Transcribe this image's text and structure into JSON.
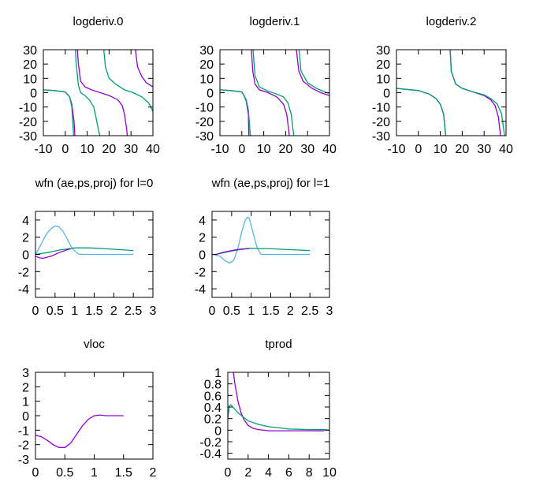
{
  "colors": {
    "purple": "#9400d3",
    "green": "#009e73",
    "blue": "#56b4e9"
  },
  "chart_data": [
    {
      "type": "line",
      "title": "logderiv.0",
      "xlim": [
        -10,
        40
      ],
      "ylim": [
        -30,
        30
      ],
      "xticks": [
        "-10",
        "0",
        "10",
        "20",
        "30",
        "40"
      ],
      "yticks": [
        "-30",
        "-20",
        "-10",
        "0",
        "10",
        "20",
        "30"
      ],
      "series": [
        {
          "color": "purple",
          "points": [
            [
              -10,
              2
            ],
            [
              -5,
              1.5
            ],
            [
              0,
              0.5
            ],
            [
              2,
              -3
            ],
            [
              3,
              -8
            ],
            [
              4,
              -20
            ],
            [
              4.4,
              -30
            ],
            null,
            [
              5.5,
              30
            ],
            [
              6,
              20
            ],
            [
              7,
              8
            ],
            [
              9,
              4
            ],
            [
              12,
              2
            ],
            [
              15,
              0.5
            ],
            [
              20,
              -2
            ],
            [
              24,
              -5
            ],
            [
              26,
              -9
            ],
            [
              27,
              -15
            ],
            [
              28,
              -25
            ],
            [
              28.3,
              -30
            ],
            null,
            [
              32,
              30
            ],
            [
              33,
              18
            ],
            [
              35,
              11
            ],
            [
              37,
              7
            ],
            [
              40,
              4
            ]
          ]
        },
        {
          "color": "green",
          "points": [
            [
              -10,
              2
            ],
            [
              -5,
              1.5
            ],
            [
              0,
              0.5
            ],
            [
              2,
              -3
            ],
            [
              3,
              -10
            ],
            [
              3.8,
              -30
            ],
            null,
            [
              4.6,
              30
            ],
            [
              5,
              20
            ],
            [
              6,
              5
            ],
            [
              7,
              0
            ],
            [
              9,
              -2
            ],
            [
              11,
              -5
            ],
            [
              13,
              -10
            ],
            [
              14,
              -17
            ],
            [
              15,
              -25
            ],
            [
              15.8,
              -30
            ],
            null,
            [
              17.6,
              30
            ],
            [
              18.3,
              18
            ],
            [
              20,
              10
            ],
            [
              23,
              6
            ],
            [
              27,
              2
            ],
            [
              31,
              0
            ],
            [
              35,
              -3
            ],
            [
              38,
              -7
            ],
            [
              40,
              -13
            ]
          ]
        }
      ]
    },
    {
      "type": "line",
      "title": "logderiv.1",
      "xlim": [
        -10,
        40
      ],
      "ylim": [
        -30,
        30
      ],
      "xticks": [
        "-10",
        "0",
        "10",
        "20",
        "30",
        "40"
      ],
      "yticks": [
        "-30",
        "-20",
        "-10",
        "0",
        "10",
        "20",
        "30"
      ],
      "series": [
        {
          "color": "purple",
          "points": [
            [
              -10,
              2
            ],
            [
              -5,
              1.5
            ],
            [
              0,
              0.5
            ],
            [
              1,
              -2
            ],
            [
              2,
              -6
            ],
            [
              3,
              -15
            ],
            [
              3.2,
              -30
            ],
            null,
            [
              4.4,
              30
            ],
            [
              5,
              15
            ],
            [
              6,
              6
            ],
            [
              8,
              2
            ],
            [
              12,
              0
            ],
            [
              16,
              -3
            ],
            [
              19,
              -8
            ],
            [
              20.5,
              -15
            ],
            [
              21.7,
              -30
            ],
            null,
            [
              24.9,
              30
            ],
            [
              26,
              15
            ],
            [
              28,
              8
            ],
            [
              32,
              3
            ],
            [
              36,
              0
            ],
            [
              40,
              -2
            ]
          ]
        },
        {
          "color": "green",
          "points": [
            [
              -10,
              2
            ],
            [
              -5,
              1.5
            ],
            [
              0,
              0.5
            ],
            [
              1,
              -2
            ],
            [
              2,
              -5
            ],
            [
              3,
              -12
            ],
            [
              3.9,
              -30
            ],
            null,
            [
              5.1,
              30
            ],
            [
              6,
              12
            ],
            [
              8,
              4
            ],
            [
              12,
              1
            ],
            [
              16,
              -1
            ],
            [
              19,
              -3
            ],
            [
              21,
              -7
            ],
            [
              22.5,
              -15
            ],
            [
              23.7,
              -30
            ],
            null,
            [
              26.1,
              30
            ],
            [
              27,
              15
            ],
            [
              30,
              7
            ],
            [
              34,
              3
            ],
            [
              38,
              0.5
            ],
            [
              40,
              -0.5
            ]
          ]
        }
      ]
    },
    {
      "type": "line",
      "title": "logderiv.2",
      "xlim": [
        -10,
        40
      ],
      "ylim": [
        -30,
        30
      ],
      "xticks": [
        "-10",
        "0",
        "10",
        "20",
        "30",
        "40"
      ],
      "yticks": [
        "-30",
        "-20",
        "-10",
        "0",
        "10",
        "20",
        "30"
      ],
      "series": [
        {
          "color": "purple",
          "points": [
            [
              -10,
              3
            ],
            [
              0,
              1.5
            ],
            [
              5,
              -1
            ],
            [
              8,
              -4
            ],
            [
              10,
              -8
            ],
            [
              11.5,
              -15
            ],
            [
              12.5,
              -30
            ],
            null,
            [
              14.5,
              30
            ],
            [
              15,
              15
            ],
            [
              17,
              6
            ],
            [
              20,
              3
            ],
            [
              25,
              0.5
            ],
            [
              30,
              -2
            ],
            [
              33,
              -5
            ],
            [
              35,
              -9
            ],
            [
              36.5,
              -17
            ],
            [
              37.5,
              -30
            ]
          ]
        },
        {
          "color": "green",
          "points": [
            [
              -10,
              3
            ],
            [
              0,
              1.5
            ],
            [
              5,
              -1
            ],
            [
              8,
              -4
            ],
            [
              10,
              -8
            ],
            [
              11.5,
              -15
            ],
            [
              12.5,
              -30
            ],
            null,
            [
              14.5,
              30
            ],
            [
              15,
              15
            ],
            [
              17,
              6
            ],
            [
              20,
              3
            ],
            [
              25,
              0.5
            ],
            [
              30,
              -1.5
            ],
            [
              33,
              -4
            ],
            [
              36,
              -8
            ],
            [
              38,
              -15
            ],
            [
              39.3,
              -30
            ]
          ]
        }
      ]
    },
    {
      "type": "line",
      "title": "wfn (ae,ps,proj) for l=0",
      "xlim": [
        0,
        3
      ],
      "ylim": [
        -5,
        5
      ],
      "xticks": [
        "0",
        "0.5",
        "1",
        "1.5",
        "2",
        "2.5",
        "3"
      ],
      "yticks": [
        "-4",
        "-2",
        "0",
        "2",
        "4"
      ],
      "series": [
        {
          "color": "blue",
          "points": [
            [
              0,
              0
            ],
            [
              0.1,
              0.8
            ],
            [
              0.2,
              1.7
            ],
            [
              0.3,
              2.5
            ],
            [
              0.4,
              3.0
            ],
            [
              0.5,
              3.3
            ],
            [
              0.6,
              3.2
            ],
            [
              0.7,
              2.7
            ],
            [
              0.8,
              1.9
            ],
            [
              0.9,
              1.0
            ],
            [
              1.0,
              0.4
            ],
            [
              1.1,
              0.05
            ],
            [
              1.2,
              0
            ],
            [
              2.5,
              0
            ]
          ]
        },
        {
          "color": "green",
          "points": [
            [
              0,
              0
            ],
            [
              0.3,
              0.2
            ],
            [
              0.6,
              0.5
            ],
            [
              1.0,
              0.75
            ],
            [
              1.4,
              0.75
            ],
            [
              2,
              0.6
            ],
            [
              2.5,
              0.45
            ]
          ]
        },
        {
          "color": "purple",
          "points": [
            [
              0,
              -0.2
            ],
            [
              0.1,
              -0.4
            ],
            [
              0.2,
              -0.45
            ],
            [
              0.4,
              -0.2
            ],
            [
              0.6,
              0.2
            ],
            [
              0.85,
              0.6
            ],
            [
              0.9,
              0.65
            ]
          ]
        }
      ]
    },
    {
      "type": "line",
      "title": "wfn (ae,ps,proj) for l=1",
      "xlim": [
        0,
        3
      ],
      "ylim": [
        -5,
        5
      ],
      "xticks": [
        "0",
        "0.5",
        "1",
        "1.5",
        "2",
        "2.5",
        "3"
      ],
      "yticks": [
        "-4",
        "-2",
        "0",
        "2",
        "4"
      ],
      "series": [
        {
          "color": "blue",
          "points": [
            [
              0,
              0
            ],
            [
              0.2,
              -0.2
            ],
            [
              0.35,
              -0.8
            ],
            [
              0.45,
              -1.0
            ],
            [
              0.55,
              -0.7
            ],
            [
              0.65,
              0.5
            ],
            [
              0.75,
              2.5
            ],
            [
              0.85,
              4.0
            ],
            [
              0.9,
              4.3
            ],
            [
              0.95,
              4.2
            ],
            [
              1.05,
              2.5
            ],
            [
              1.15,
              0.8
            ],
            [
              1.25,
              0
            ],
            [
              2.5,
              0
            ]
          ]
        },
        {
          "color": "green",
          "points": [
            [
              0.1,
              0
            ],
            [
              0.4,
              0.3
            ],
            [
              0.7,
              0.55
            ],
            [
              1.0,
              0.7
            ],
            [
              1.5,
              0.65
            ],
            [
              2,
              0.55
            ],
            [
              2.5,
              0.45
            ]
          ]
        },
        {
          "color": "purple",
          "points": [
            [
              0.1,
              0
            ],
            [
              0.3,
              0.25
            ],
            [
              0.5,
              0.45
            ],
            [
              0.7,
              0.6
            ],
            [
              0.95,
              0.7
            ]
          ]
        }
      ]
    },
    {
      "type": "line",
      "title": "vloc",
      "xlim": [
        0,
        2
      ],
      "ylim": [
        -3,
        3
      ],
      "xticks": [
        "0",
        "0.5",
        "1",
        "1.5",
        "2"
      ],
      "yticks": [
        "-3",
        "-2",
        "-1",
        "0",
        "1",
        "2",
        "3"
      ],
      "series": [
        {
          "color": "purple",
          "points": [
            [
              0,
              -1.35
            ],
            [
              0.1,
              -1.45
            ],
            [
              0.2,
              -1.7
            ],
            [
              0.3,
              -2.0
            ],
            [
              0.4,
              -2.2
            ],
            [
              0.5,
              -2.2
            ],
            [
              0.6,
              -1.9
            ],
            [
              0.7,
              -1.3
            ],
            [
              0.8,
              -0.7
            ],
            [
              0.9,
              -0.25
            ],
            [
              1.0,
              0
            ],
            [
              1.1,
              0.05
            ],
            [
              1.2,
              0
            ],
            [
              1.5,
              0
            ]
          ]
        }
      ]
    },
    {
      "type": "line",
      "title": "tprod",
      "xlim": [
        0,
        10
      ],
      "ylim": [
        -0.5,
        1
      ],
      "xticks": [
        "0",
        "2",
        "4",
        "6",
        "8",
        "10"
      ],
      "yticks": [
        "-0.4",
        "-0.2",
        "0",
        "0.2",
        "0.4",
        "0.6",
        "0.8",
        "1"
      ],
      "series": [
        {
          "color": "purple",
          "points": [
            [
              0.55,
              1.0
            ],
            [
              0.7,
              0.8
            ],
            [
              1,
              0.5
            ],
            [
              1.3,
              0.3
            ],
            [
              1.6,
              0.18
            ],
            [
              2,
              0.08
            ],
            [
              2.5,
              0.03
            ],
            [
              3,
              0.01
            ],
            [
              4,
              -0.01
            ],
            [
              9.5,
              -0.01
            ]
          ]
        },
        {
          "color": "green",
          "points": [
            [
              0,
              0.2
            ],
            [
              0.15,
              0.42
            ],
            [
              0.3,
              0.44
            ],
            [
              0.6,
              0.38
            ],
            [
              1,
              0.3
            ],
            [
              1.5,
              0.23
            ],
            [
              2,
              0.16
            ],
            [
              3,
              0.1
            ],
            [
              4,
              0.06
            ],
            [
              5,
              0.04
            ],
            [
              6,
              0.02
            ],
            [
              8,
              0.01
            ],
            [
              9.5,
              0.01
            ],
            [
              10,
              0
            ]
          ]
        }
      ]
    }
  ]
}
